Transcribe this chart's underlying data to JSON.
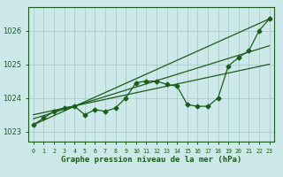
{
  "background_color": "#cce8e8",
  "grid_color": "#aacccc",
  "line_color": "#1a5c1a",
  "title": "Graphe pression niveau de la mer (hPa)",
  "xlim": [
    -0.5,
    23.5
  ],
  "ylim": [
    1022.7,
    1026.7
  ],
  "yticks": [
    1023,
    1024,
    1025,
    1026
  ],
  "xtick_labels": [
    "0",
    "1",
    "2",
    "3",
    "4",
    "5",
    "6",
    "7",
    "8",
    "9",
    "10",
    "11",
    "12",
    "13",
    "14",
    "15",
    "16",
    "17",
    "18",
    "19",
    "20",
    "21",
    "22",
    "23"
  ],
  "main_series": [
    1023.2,
    1023.4,
    1023.6,
    1023.7,
    1023.75,
    1023.5,
    1023.65,
    1023.6,
    1023.7,
    1024.0,
    1024.45,
    1024.5,
    1024.5,
    1024.4,
    1024.35,
    1023.8,
    1023.75,
    1023.75,
    1024.0,
    1024.95,
    1025.2,
    1025.4,
    1026.0,
    1026.35
  ],
  "trend1_x": [
    0,
    23
  ],
  "trend1_y": [
    1023.2,
    1026.35
  ],
  "trend2_x": [
    0,
    23
  ],
  "trend2_y": [
    1023.38,
    1025.55
  ],
  "trend3_x": [
    0,
    23
  ],
  "trend3_y": [
    1023.5,
    1025.0
  ],
  "marker": "D",
  "marker_size": 2.5,
  "linewidth": 0.9
}
